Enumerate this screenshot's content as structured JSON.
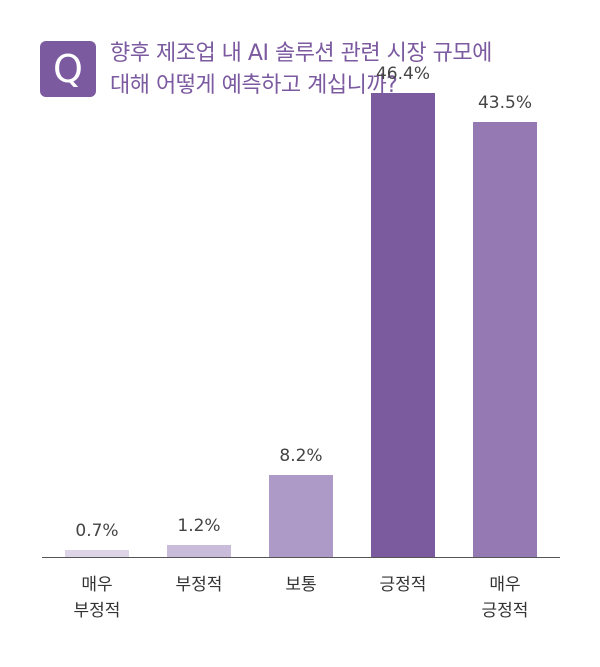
{
  "badge": {
    "letter": "Q",
    "color": "#7b5aa0"
  },
  "question": {
    "line1": "향후 제조업 내 AI 솔루션 관련 시장 규모에",
    "line2": "대해 어떻게 예측하고 계십니까?",
    "color": "#7b5aa0"
  },
  "chart_data": {
    "type": "bar",
    "categories": [
      [
        "매우",
        "부정적"
      ],
      [
        "부정적"
      ],
      [
        "보통"
      ],
      [
        "긍정적"
      ],
      [
        "매우",
        "긍정적"
      ]
    ],
    "values": [
      0.7,
      1.2,
      8.2,
      46.4,
      43.5
    ],
    "value_labels": [
      "0.7%",
      "1.2%",
      "8.2%",
      "46.4%",
      "43.5%"
    ],
    "bar_colors": [
      "#ddd4e8",
      "#c9bcdb",
      "#ae9ac6",
      "#7b5a9e",
      "#9479b2"
    ],
    "ylim": [
      0,
      50
    ],
    "grid": false,
    "baseline_color": "#555555"
  }
}
